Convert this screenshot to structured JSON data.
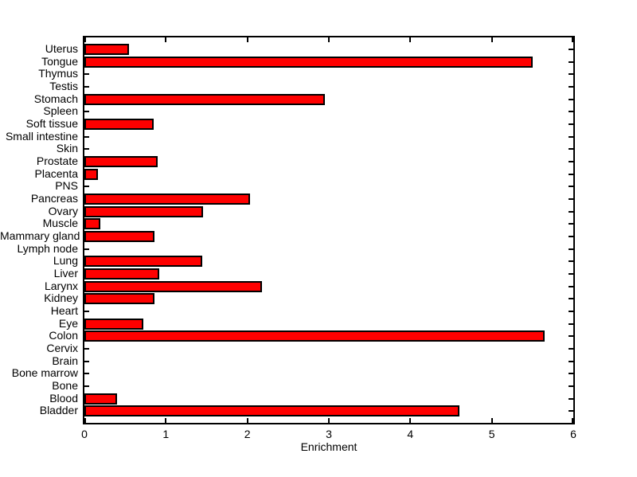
{
  "figure": {
    "background": "#FFFFFF",
    "axis_color": "#000000"
  },
  "chart_data": {
    "type": "bar",
    "orientation": "horizontal",
    "xlabel": "Enrichment",
    "ylabel": "",
    "xlim": [
      0,
      6
    ],
    "xticks": [
      "0",
      "1",
      "2",
      "3",
      "4",
      "5",
      "6"
    ],
    "grid": false,
    "legend": false,
    "bar_color": "#FF0000",
    "bar_edge_color": "#000000",
    "categories_top_to_bottom": [
      "Uterus",
      "Tongue",
      "Thymus",
      "Testis",
      "Stomach",
      "Spleen",
      "Soft tissue",
      "Small intestine",
      "Skin",
      "Prostate",
      "Placenta",
      "PNS",
      "Pancreas",
      "Ovary",
      "Muscle",
      "Mammary gland",
      "Lymph node",
      "Lung",
      "Liver",
      "Larynx",
      "Kidney",
      "Heart",
      "Eye",
      "Colon",
      "Cervix",
      "Brain",
      "Bone marrow",
      "Bone",
      "Blood",
      "Bladder"
    ],
    "values": [
      0.55,
      5.5,
      0,
      0,
      2.95,
      0,
      0.85,
      0,
      0,
      0.9,
      0.17,
      0,
      2.03,
      1.46,
      0.2,
      0.86,
      0,
      1.45,
      0.92,
      2.18,
      0.86,
      0,
      0.72,
      5.65,
      0,
      0,
      0,
      0,
      0.4,
      4.6
    ]
  }
}
